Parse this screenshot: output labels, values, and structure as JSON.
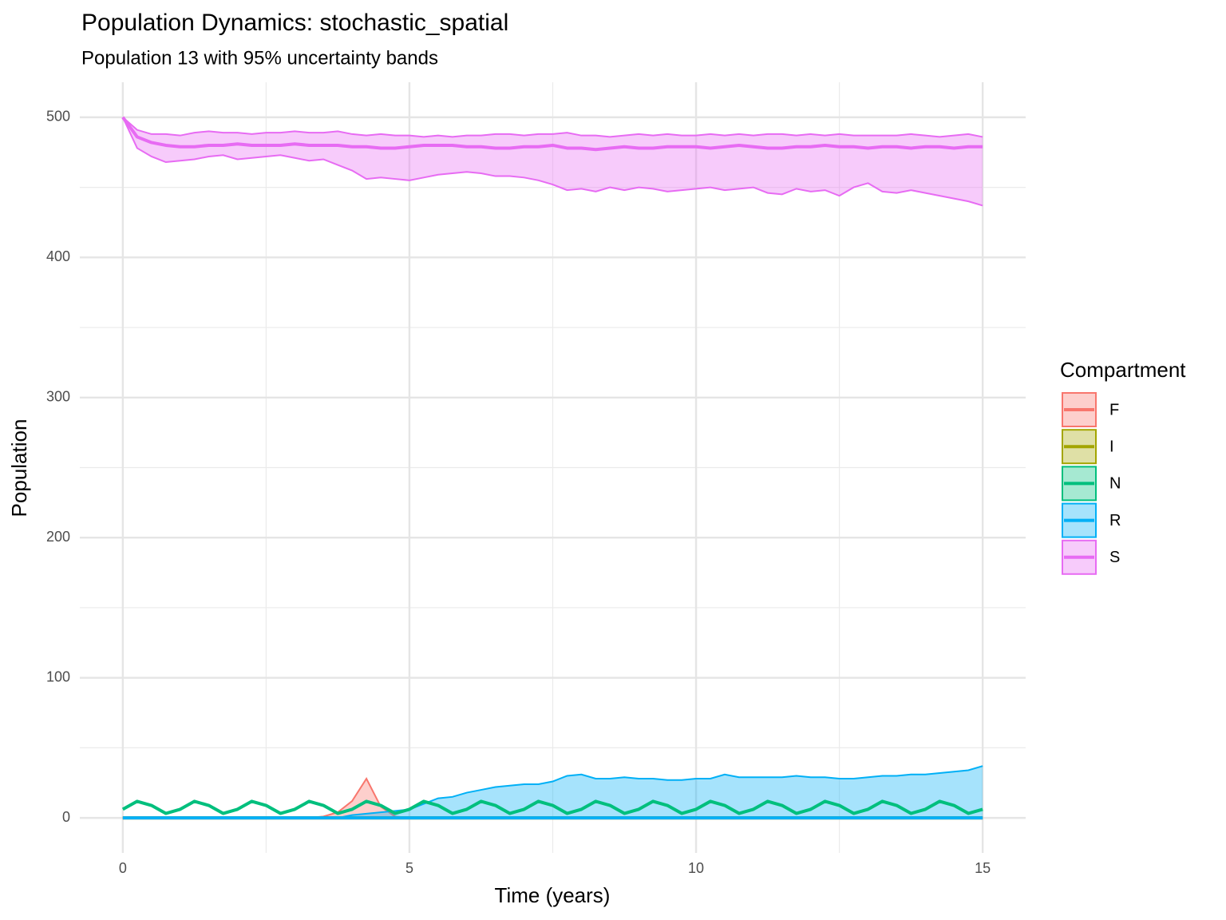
{
  "chart_data": {
    "type": "line",
    "title": "Population Dynamics: stochastic_spatial",
    "subtitle": "Population 13 with 95% uncertainty bands",
    "x_label": "Time (years)",
    "y_label": "Population",
    "legend_title": "Compartment",
    "legend_position": "right",
    "grid": true,
    "xlim": [
      -0.75,
      15.75
    ],
    "ylim": [
      -25,
      525
    ],
    "xticks": [
      0,
      5,
      10,
      15
    ],
    "yticks": [
      0,
      100,
      200,
      300,
      400,
      500
    ],
    "xminor": [
      2.5,
      7.5,
      12.5
    ],
    "yminor": [
      50,
      150,
      250,
      350,
      450
    ],
    "x": [
      0,
      0.25,
      0.5,
      0.75,
      1,
      1.25,
      1.5,
      1.75,
      2,
      2.25,
      2.5,
      2.75,
      3,
      3.25,
      3.5,
      3.75,
      4,
      4.25,
      4.5,
      4.75,
      5,
      5.25,
      5.5,
      5.75,
      6,
      6.25,
      6.5,
      6.75,
      7,
      7.25,
      7.5,
      7.75,
      8,
      8.25,
      8.5,
      8.75,
      9,
      9.25,
      9.5,
      9.75,
      10,
      10.25,
      10.5,
      10.75,
      11,
      11.25,
      11.5,
      11.75,
      12,
      12.25,
      12.5,
      12.75,
      13,
      13.25,
      13.5,
      13.75,
      14,
      14.25,
      14.5,
      14.75,
      15
    ],
    "series": [
      {
        "name": "F",
        "color": "#F8766D",
        "values": [
          0,
          0,
          0,
          0,
          0,
          0,
          0,
          0,
          0,
          0,
          0,
          0,
          0,
          0,
          0,
          0,
          0,
          0,
          0,
          0,
          0,
          0,
          0,
          0,
          0,
          0,
          0,
          0,
          0,
          0,
          0,
          0,
          0,
          0,
          0,
          0,
          0,
          0,
          0,
          0,
          0,
          0,
          0,
          0,
          0,
          0,
          0,
          0,
          0,
          0,
          0,
          0,
          0,
          0,
          0,
          0,
          0,
          0,
          0,
          0,
          0
        ],
        "lower": [
          0,
          0,
          0,
          0,
          0,
          0,
          0,
          0,
          0,
          0,
          0,
          0,
          0,
          0,
          0,
          0,
          0,
          0,
          0,
          0,
          0,
          0,
          0,
          0,
          0,
          0,
          0,
          0,
          0,
          0,
          0,
          0,
          0,
          0,
          0,
          0,
          0,
          0,
          0,
          0,
          0,
          0,
          0,
          0,
          0,
          0,
          0,
          0,
          0,
          0,
          0,
          0,
          0,
          0,
          0,
          0,
          0,
          0,
          0,
          0,
          0
        ],
        "upper": [
          0,
          0,
          0,
          0,
          0,
          0,
          0,
          0,
          0,
          0,
          0,
          0,
          0,
          0,
          1,
          4,
          12,
          28,
          8,
          1,
          0,
          0,
          0,
          0,
          0,
          0,
          0,
          0,
          0,
          0,
          0,
          0,
          0,
          0,
          0,
          0,
          0,
          0,
          0,
          0,
          0,
          0,
          0,
          0,
          0,
          0,
          0,
          0,
          0,
          0,
          0,
          0,
          0,
          0,
          0,
          0,
          0,
          0,
          0,
          0,
          0
        ]
      },
      {
        "name": "I",
        "color": "#A3A500",
        "values": [
          0,
          0,
          0,
          0,
          0,
          0,
          0,
          0,
          0,
          0,
          0,
          0,
          0,
          0,
          0,
          0,
          0,
          0,
          0,
          0,
          0,
          0,
          0,
          0,
          0,
          0,
          0,
          0,
          0,
          0,
          0,
          0,
          0,
          0,
          0,
          0,
          0,
          0,
          0,
          0,
          0,
          0,
          0,
          0,
          0,
          0,
          0,
          0,
          0,
          0,
          0,
          0,
          0,
          0,
          0,
          0,
          0,
          0,
          0,
          0,
          0
        ]
      },
      {
        "name": "N",
        "color": "#00BF7D",
        "values": [
          6.1,
          11.8,
          8.9,
          3.2,
          6.1,
          11.8,
          8.9,
          3.2,
          6.1,
          11.8,
          8.9,
          3.2,
          6.1,
          11.8,
          8.9,
          3.2,
          6.1,
          11.8,
          8.9,
          3.2,
          6.1,
          11.8,
          8.9,
          3.2,
          6.1,
          11.8,
          8.9,
          3.2,
          6.1,
          11.8,
          8.9,
          3.2,
          6.1,
          11.8,
          8.9,
          3.2,
          6.1,
          11.8,
          8.9,
          3.2,
          6.1,
          11.8,
          8.9,
          3.2,
          6.1,
          11.8,
          8.9,
          3.2,
          6.1,
          11.8,
          8.9,
          3.2,
          6.1,
          11.8,
          8.9,
          3.2,
          6.1,
          11.8,
          8.9,
          3.2,
          6.1
        ]
      },
      {
        "name": "R",
        "color": "#00B0F6",
        "values": [
          0,
          0,
          0,
          0,
          0,
          0,
          0,
          0,
          0,
          0,
          0,
          0,
          0,
          0,
          0,
          0,
          0,
          0,
          0,
          0,
          0,
          0,
          0,
          0,
          0,
          0,
          0,
          0,
          0,
          0,
          0,
          0,
          0,
          0,
          0,
          0,
          0,
          0,
          0,
          0,
          0,
          0,
          0,
          0,
          0,
          0,
          0,
          0,
          0,
          0,
          0,
          0,
          0,
          0,
          0,
          0,
          0,
          0,
          0,
          0,
          0
        ],
        "lower": [
          0,
          0,
          0,
          0,
          0,
          0,
          0,
          0,
          0,
          0,
          0,
          0,
          0,
          0,
          0,
          0,
          0,
          0,
          0,
          0,
          0,
          0,
          0,
          0,
          0,
          0,
          0,
          0,
          0,
          0,
          0,
          0,
          0,
          0,
          0,
          0,
          0,
          0,
          0,
          0,
          0,
          0,
          0,
          0,
          0,
          0,
          0,
          0,
          0,
          0,
          0,
          0,
          0,
          0,
          0,
          0,
          0,
          0,
          0,
          0,
          0
        ],
        "upper": [
          0,
          0,
          0,
          0,
          0,
          0,
          0,
          0,
          0,
          0,
          0,
          0,
          0,
          0,
          0,
          0,
          2,
          3,
          4,
          5,
          6,
          10,
          14,
          15,
          18,
          20,
          22,
          23,
          24,
          24,
          26,
          30,
          31,
          28,
          28,
          29,
          28,
          28,
          27,
          27,
          28,
          28,
          31,
          29,
          29,
          29,
          29,
          30,
          29,
          29,
          28,
          28,
          29,
          30,
          30,
          31,
          31,
          32,
          33,
          34,
          37
        ]
      },
      {
        "name": "S",
        "color": "#E76BF3",
        "values": [
          500,
          486,
          482,
          480,
          479,
          479,
          480,
          480,
          481,
          480,
          480,
          480,
          481,
          480,
          480,
          480,
          479,
          479,
          478,
          478,
          479,
          480,
          480,
          480,
          479,
          479,
          478,
          478,
          479,
          479,
          480,
          478,
          478,
          477,
          478,
          479,
          478,
          478,
          479,
          479,
          479,
          478,
          479,
          480,
          479,
          478,
          478,
          479,
          479,
          480,
          479,
          479,
          478,
          479,
          479,
          478,
          479,
          479,
          478,
          479,
          479
        ],
        "lower": [
          500,
          478,
          472,
          468,
          469,
          470,
          472,
          473,
          470,
          471,
          472,
          473,
          471,
          469,
          470,
          466,
          462,
          456,
          457,
          456,
          455,
          457,
          459,
          460,
          461,
          460,
          458,
          458,
          457,
          455,
          452,
          448,
          449,
          447,
          450,
          448,
          450,
          449,
          447,
          448,
          449,
          450,
          448,
          449,
          450,
          446,
          445,
          449,
          447,
          448,
          444,
          450,
          453,
          447,
          446,
          448,
          446,
          444,
          442,
          440,
          437
        ],
        "upper": [
          500,
          491,
          488,
          488,
          487,
          489,
          490,
          489,
          489,
          488,
          489,
          489,
          490,
          489,
          489,
          490,
          488,
          487,
          488,
          487,
          487,
          486,
          487,
          486,
          487,
          487,
          488,
          488,
          487,
          488,
          488,
          489,
          487,
          487,
          486,
          487,
          488,
          487,
          488,
          487,
          487,
          488,
          487,
          488,
          487,
          488,
          488,
          487,
          488,
          487,
          488,
          487,
          487,
          487,
          487,
          488,
          487,
          486,
          487,
          488,
          486
        ]
      }
    ]
  }
}
